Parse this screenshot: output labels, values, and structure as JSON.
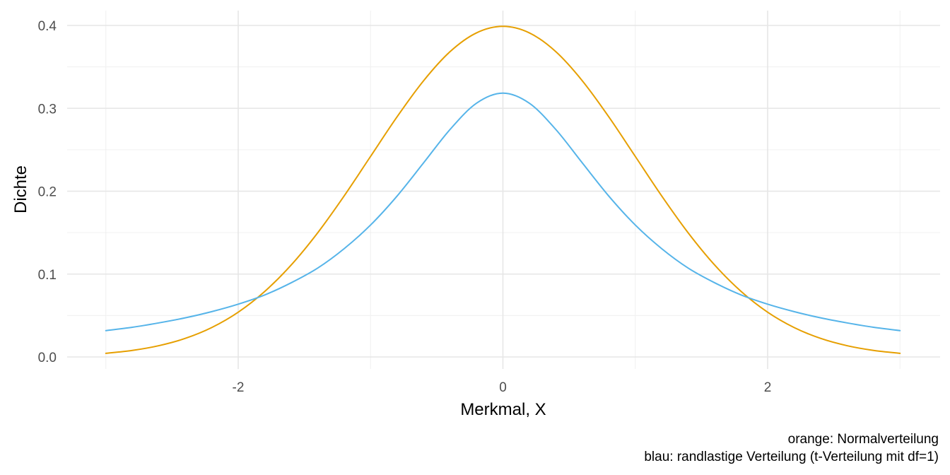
{
  "chart_data": {
    "type": "line",
    "xlabel": "Merkmal, X",
    "ylabel": "Dichte",
    "xlim": [
      -3.0,
      3.0
    ],
    "ylim": [
      0.0,
      0.4
    ],
    "x_ticks": [
      -2,
      0,
      2
    ],
    "x_tick_labels": [
      "-2",
      "0",
      "2"
    ],
    "y_ticks": [
      0.0,
      0.1,
      0.2,
      0.3,
      0.4
    ],
    "y_tick_labels": [
      "0.0",
      "0.1",
      "0.2",
      "0.3",
      "0.4"
    ],
    "grid": true,
    "caption": [
      "orange: Normalverteilung",
      "blau: randlastige Verteilung (t-Verteilung mit df=1)"
    ],
    "series": [
      {
        "color": "#E69F00",
        "x": [
          -3.0,
          -2.8,
          -2.6,
          -2.4,
          -2.2,
          -2.0,
          -1.8,
          -1.6,
          -1.4,
          -1.2,
          -1.0,
          -0.8,
          -0.6,
          -0.4,
          -0.2,
          0.0,
          0.2,
          0.4,
          0.6,
          0.8,
          1.0,
          1.2,
          1.4,
          1.6,
          1.8,
          2.0,
          2.2,
          2.4,
          2.6,
          2.8,
          3.0
        ],
        "y": [
          0.0044,
          0.0079,
          0.0136,
          0.0224,
          0.0355,
          0.054,
          0.079,
          0.1109,
          0.1497,
          0.1942,
          0.242,
          0.2897,
          0.3332,
          0.3683,
          0.391,
          0.3989,
          0.391,
          0.3683,
          0.3332,
          0.2897,
          0.242,
          0.1942,
          0.1497,
          0.1109,
          0.079,
          0.054,
          0.0355,
          0.0224,
          0.0136,
          0.0079,
          0.0044
        ]
      },
      {
        "color": "#56B4E9",
        "x": [
          -3.0,
          -2.8,
          -2.6,
          -2.4,
          -2.2,
          -2.0,
          -1.8,
          -1.6,
          -1.4,
          -1.2,
          -1.0,
          -0.8,
          -0.6,
          -0.4,
          -0.2,
          0.0,
          0.2,
          0.4,
          0.6,
          0.8,
          1.0,
          1.2,
          1.4,
          1.6,
          1.8,
          2.0,
          2.2,
          2.4,
          2.6,
          2.8,
          3.0
        ],
        "y": [
          0.0318,
          0.0358,
          0.0411,
          0.0472,
          0.0547,
          0.0637,
          0.0748,
          0.0895,
          0.1072,
          0.1306,
          0.1592,
          0.1941,
          0.2341,
          0.2744,
          0.3061,
          0.3183,
          0.3061,
          0.2744,
          0.2341,
          0.1941,
          0.1592,
          0.1306,
          0.1072,
          0.0895,
          0.0748,
          0.0637,
          0.0547,
          0.0472,
          0.0411,
          0.0358,
          0.0318
        ]
      }
    ]
  }
}
